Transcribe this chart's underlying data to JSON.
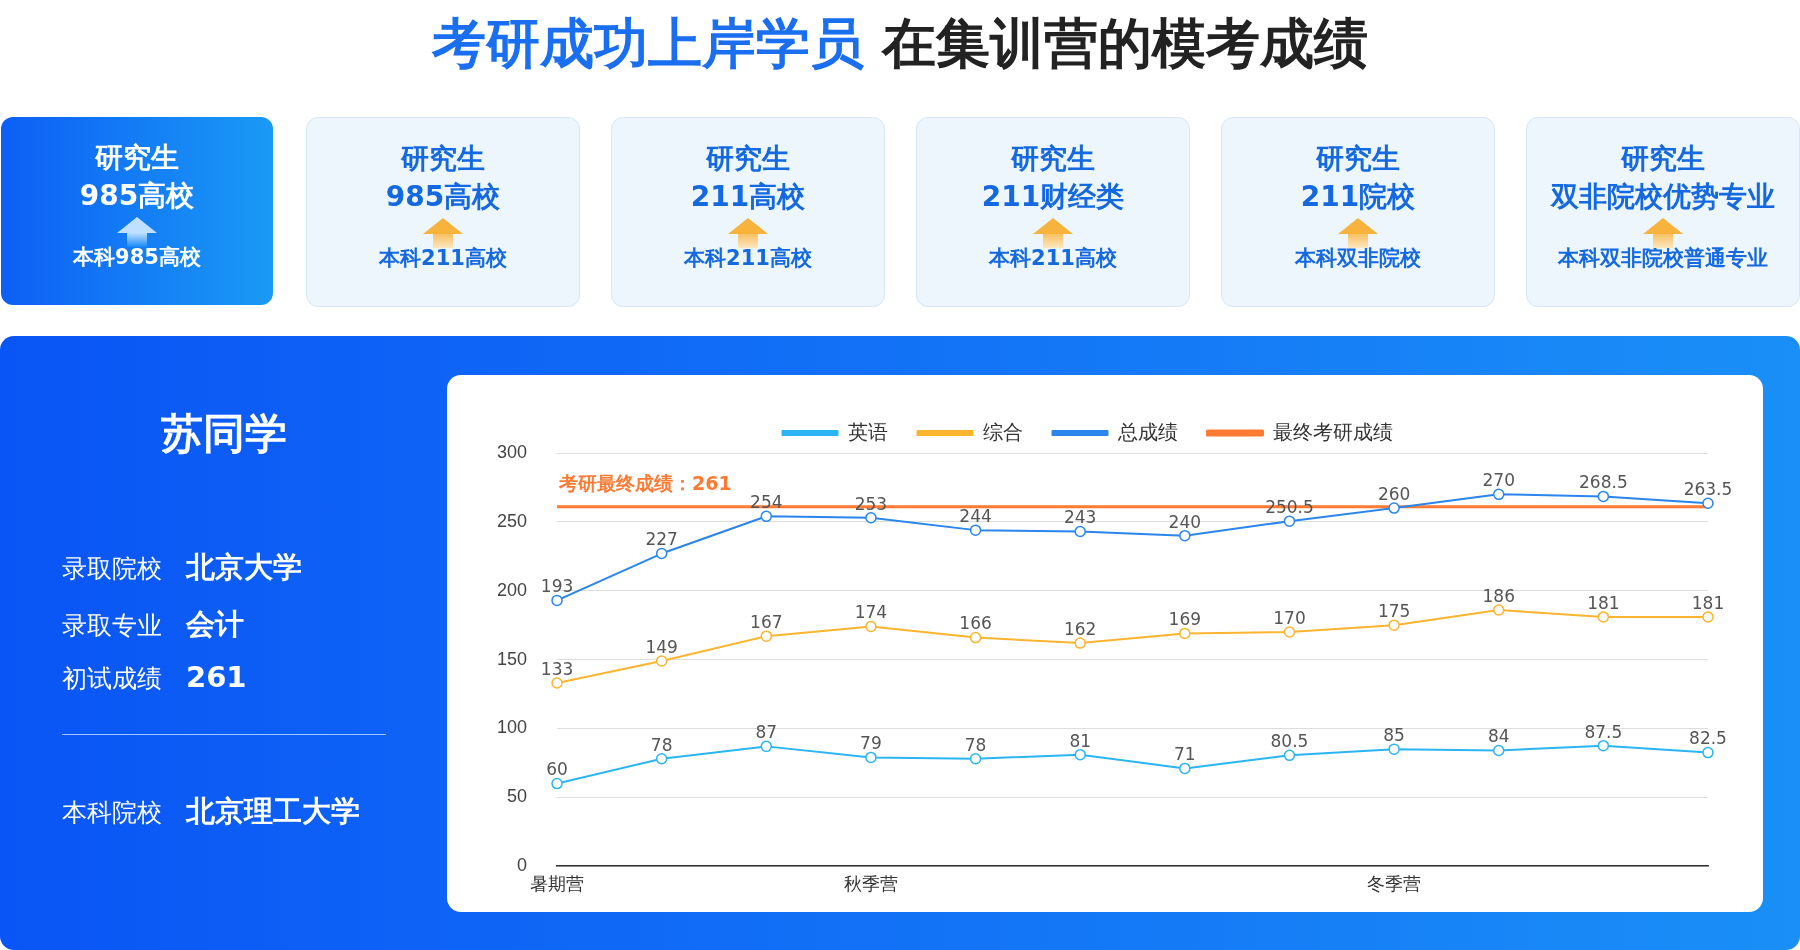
{
  "chart_data": [
    {
      "type": "other",
      "title": "考研成功上岸学员 在集训营的模考成绩",
      "annotations": [
        "研究生",
        "985高校",
        "本科985高校",
        "研究生",
        "985高校",
        "本科211高校",
        "研究生",
        "211高校",
        "本科211高校",
        "研究生",
        "211财经类",
        "本科211高校",
        "研究生",
        "211院校",
        "本科双非院校",
        "研究生",
        "双非院校优势专业",
        "本科双非院校普通专业",
        "苏同学",
        "录取院校",
        "北京大学",
        "录取专业",
        "会计",
        "初试成绩",
        "261",
        "本科院校",
        "北京理工大学"
      ]
    },
    {
      "type": "line",
      "categories": [
        "暑期营",
        null,
        null,
        "秋季营",
        null,
        null,
        null,
        null,
        "冬季营",
        null,
        null,
        null
      ],
      "series": [
        {
          "name": "英语",
          "color": "#2bb5f5",
          "values": [
            60,
            78,
            87,
            79,
            78,
            81,
            71,
            80.5,
            85,
            84,
            87.5,
            82.5
          ],
          "value_labels": [
            "60",
            "78",
            "87",
            "79",
            "78",
            "81",
            "71",
            "80.5",
            "85",
            "84",
            "87.5",
            "82.5"
          ]
        },
        {
          "name": "综合",
          "color": "#fdb42f",
          "values": [
            133,
            149,
            167,
            174,
            166,
            162,
            169,
            170,
            175,
            186,
            181,
            181
          ],
          "value_labels": [
            "133",
            "149",
            "167",
            "174",
            "166",
            "162",
            "169",
            "170",
            "175",
            "186",
            "181",
            "181"
          ]
        },
        {
          "name": "总成绩",
          "color": "#2a85ee",
          "values": [
            193,
            227,
            254,
            253,
            244,
            243,
            240,
            250.5,
            260,
            270,
            268.5,
            263.5
          ],
          "value_labels": [
            "193",
            "227",
            "254",
            "253",
            "244",
            "243",
            "240",
            "250.5",
            "260",
            "270",
            "268.5",
            "263.5"
          ]
        },
        {
          "name": "最终考研成绩",
          "color": "#ff7a33",
          "marker": "none",
          "values": [
            261,
            261,
            261,
            261,
            261,
            261,
            261,
            261,
            261,
            261,
            261,
            261
          ]
        }
      ],
      "annotations": [
        {
          "text": "考研最终成绩：261",
          "y": 261
        }
      ],
      "ylim": [
        0,
        300
      ],
      "yticks": [
        0,
        50,
        100,
        150,
        200,
        250,
        300
      ],
      "grid": "y",
      "legend": "top",
      "marker": "circle",
      "line_style": "solid"
    }
  ]
}
